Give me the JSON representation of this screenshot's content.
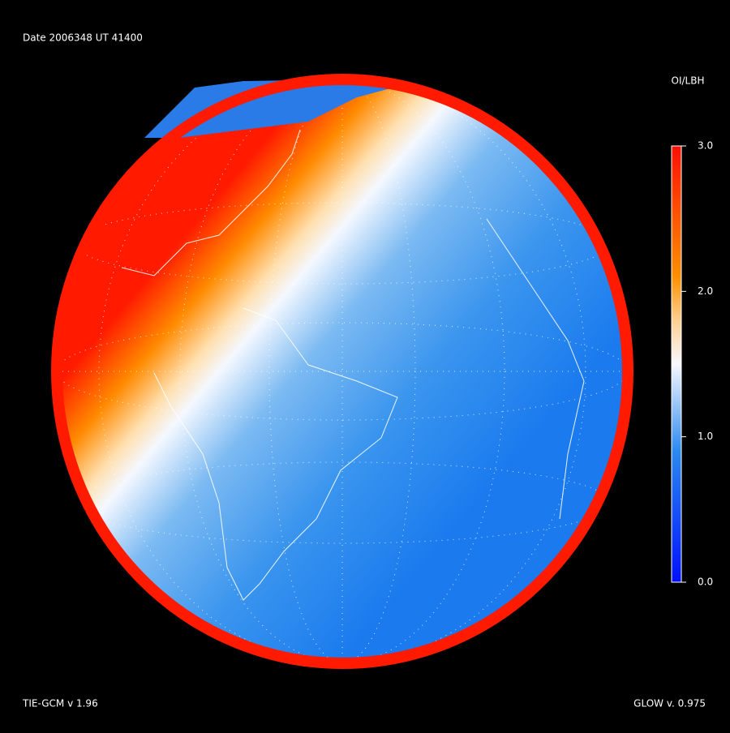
{
  "header": {
    "title": "Date 2006348  UT 41400"
  },
  "colorbar": {
    "title": "OI/LBH",
    "lim": [
      0,
      3
    ],
    "ticks": [
      {
        "value": 3,
        "label": "3.0"
      },
      {
        "value": 2,
        "label": "2.0"
      },
      {
        "value": 1,
        "label": "1.0"
      },
      {
        "value": 0,
        "label": "0.0"
      }
    ]
  },
  "footer": {
    "left": "TIE-GCM v 1.96",
    "right": "GLOW v. 0.975"
  }
}
